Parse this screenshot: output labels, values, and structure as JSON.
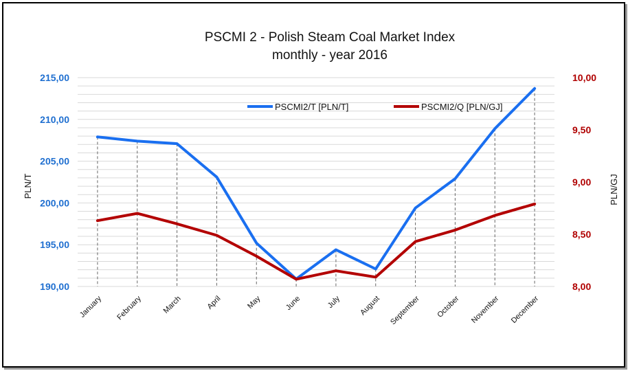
{
  "chart_data": {
    "type": "line",
    "title": "PSCMI 2 - Polish Steam Coal Market Index",
    "subtitle": "monthly  - year 2016",
    "categories": [
      "January",
      "February",
      "March",
      "April",
      "May",
      "June",
      "July",
      "August",
      "September",
      "October",
      "November",
      "December"
    ],
    "series": [
      {
        "name": "PSCMI2/T  [PLN/T]",
        "axis": "left",
        "color": "#1a6ff0",
        "values": [
          207.9,
          207.4,
          207.1,
          203.1,
          195.2,
          190.9,
          194.4,
          192.1,
          199.4,
          202.9,
          208.9,
          213.7
        ]
      },
      {
        "name": "PSCMI2/Q  [PLN/GJ]",
        "axis": "right",
        "color": "#b30000",
        "values": [
          8.63,
          8.7,
          8.6,
          8.49,
          8.29,
          8.07,
          8.15,
          8.09,
          8.43,
          8.54,
          8.68,
          8.79
        ]
      }
    ],
    "ylabel": "PLN/T",
    "y2label": "PLN/GJ",
    "ylim": [
      190,
      215
    ],
    "y2lim": [
      8.0,
      10.0
    ],
    "yticks": [
      "190,00",
      "195,00",
      "200,00",
      "205,00",
      "210,00",
      "215,00"
    ],
    "y2ticks": [
      "8,00",
      "8,50",
      "9,00",
      "9,50",
      "10,00"
    ],
    "grid": true,
    "legend": "top-center"
  },
  "colors": {
    "left_axis": "#1f6fd0",
    "right_axis": "#b00000",
    "grid": "#d9d9d9"
  }
}
